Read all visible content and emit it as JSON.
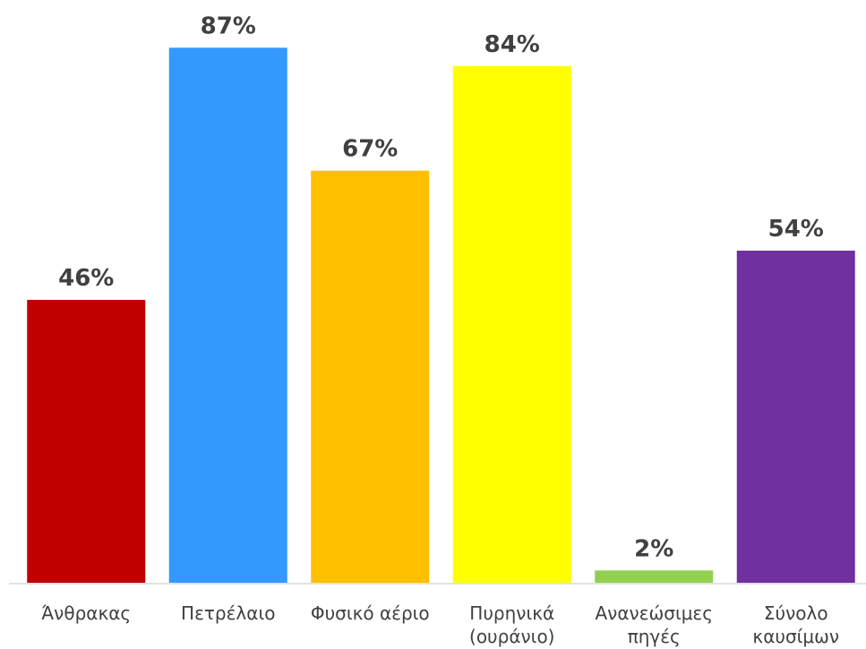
{
  "chart_data": {
    "type": "bar",
    "categories": [
      "Άνθρακας",
      "Πετρέλαιο",
      "Φυσικό αέριο",
      "Πυρηνικά (ουράνιο)",
      "Ανανεώσιμες πηγές",
      "Σύνολο καυσίμων"
    ],
    "values": [
      46,
      87,
      67,
      84,
      2,
      54
    ],
    "value_labels": [
      "46%",
      "87%",
      "67%",
      "84%",
      "2%",
      "54%"
    ],
    "colors": [
      "#c00000",
      "#3399ff",
      "#ffc000",
      "#ffff00",
      "#92d050",
      "#7030a0"
    ],
    "ylim": [
      0,
      100
    ]
  }
}
